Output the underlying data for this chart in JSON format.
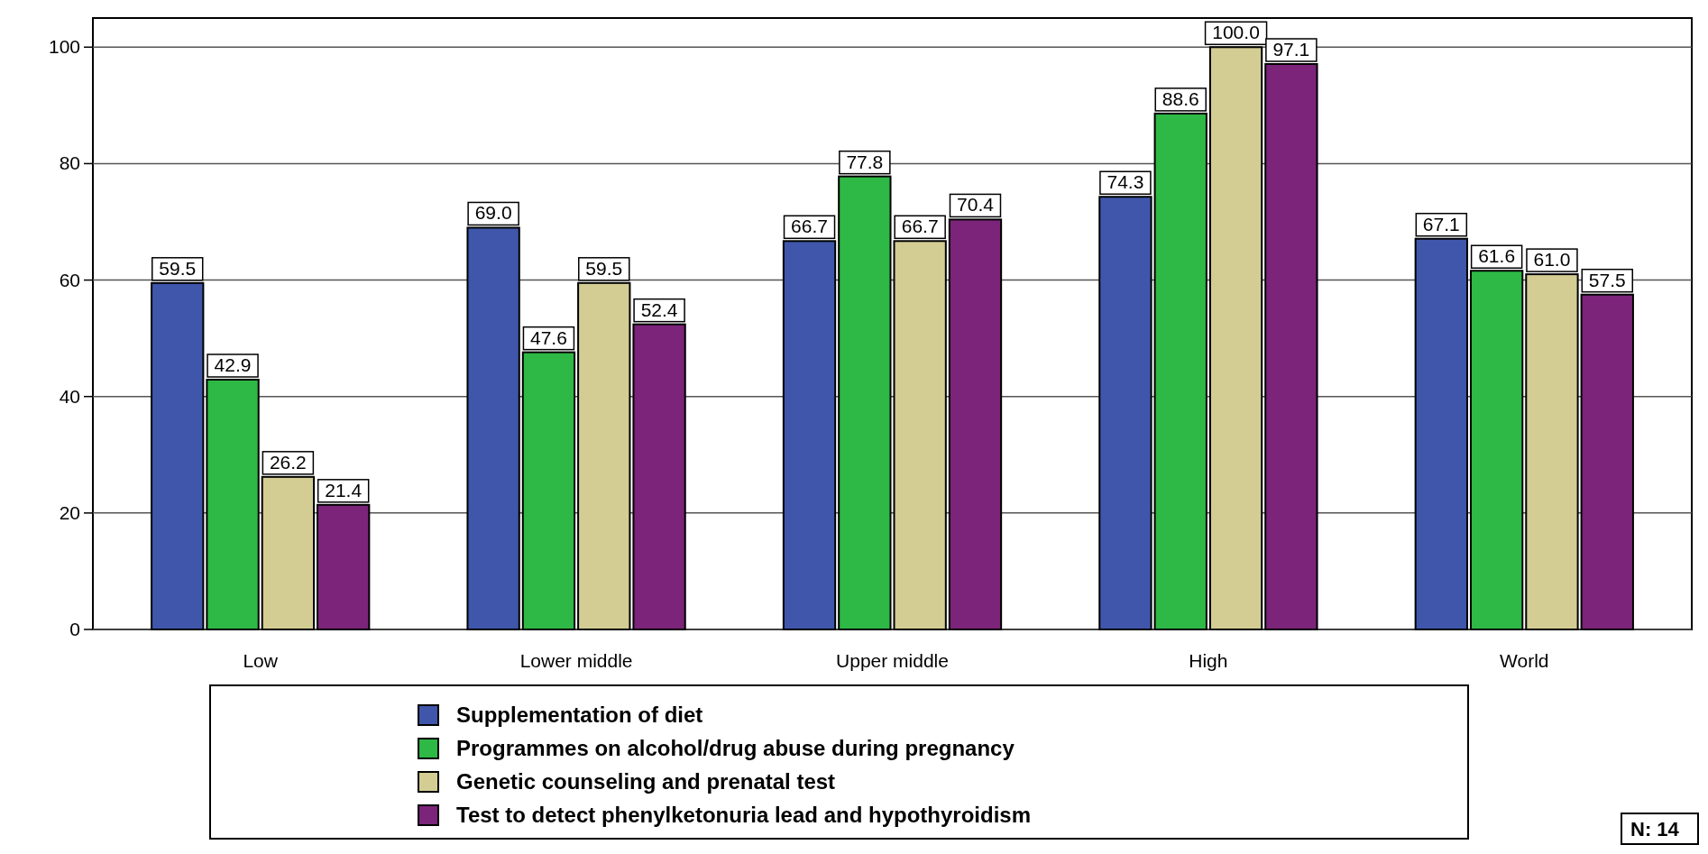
{
  "chart_data": {
    "type": "bar",
    "categories": [
      "Low",
      "Lower middle",
      "Upper middle",
      "High",
      "World"
    ],
    "series": [
      {
        "name": "Supplementation of diet",
        "color": "#3f56aa",
        "values": [
          59.5,
          69.0,
          66.7,
          74.3,
          67.1
        ],
        "value_labels": [
          "59.5",
          "69.0",
          "66.7",
          "74.3",
          "67.1"
        ]
      },
      {
        "name": "Programmes on alcohol/drug abuse during pregnancy",
        "color": "#2eb845",
        "values": [
          42.9,
          47.6,
          77.8,
          88.6,
          61.6
        ],
        "value_labels": [
          "42.9",
          "47.6",
          "77.8",
          "88.6",
          "61.6"
        ]
      },
      {
        "name": "Genetic counseling and prenatal test",
        "color": "#d3cd94",
        "values": [
          26.2,
          59.5,
          66.7,
          100.0,
          61.0
        ],
        "value_labels": [
          "26.2",
          "59.5",
          "66.7",
          "100.0",
          "61.0"
        ]
      },
      {
        "name": "Test to detect phenylketonuria lead and hypothyroidism",
        "color": "#7b2479",
        "values": [
          21.4,
          52.4,
          70.4,
          97.1,
          57.5
        ],
        "value_labels": [
          "21.4",
          "52.4",
          "70.4",
          "97.1",
          "57.5"
        ]
      }
    ],
    "ylim": [
      0,
      105
    ],
    "yticks": [
      0,
      20,
      40,
      60,
      80,
      100
    ],
    "grid": "y",
    "legend": "bottom",
    "annotations": [
      "N: 14"
    ]
  }
}
